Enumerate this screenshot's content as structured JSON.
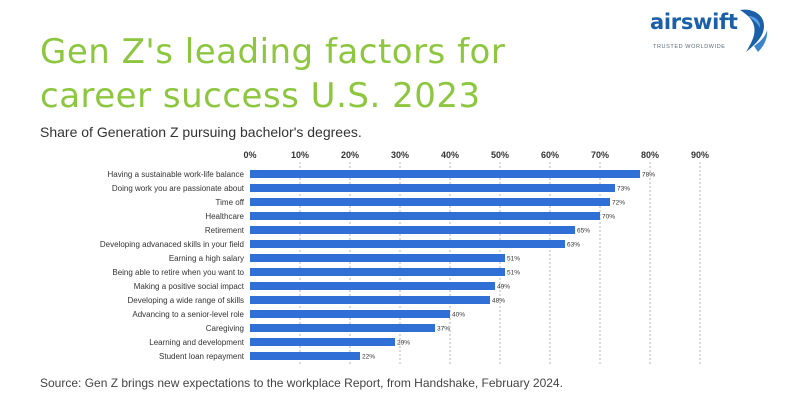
{
  "brand": {
    "name": "airswift",
    "tagline": "TRUSTED WORLDWIDE",
    "logo_color": "#1a5fa8"
  },
  "chart_data": {
    "type": "bar",
    "orientation": "horizontal",
    "title": "Gen Z's leading factors for career success U.S. 2023",
    "subtitle": "Share of Generation Z pursuing bachelor's degrees.",
    "source": "Source: Gen Z brings new expectations to the workplace Report, from Handshake, February 2024.",
    "categories": [
      "Having a sustainable work-life balance",
      "Doing work you are passionate about",
      "Time off",
      "Healthcare",
      "Retirement",
      "Developing advanaced skills in your field",
      "Earning a high salary",
      "Being able to retire when you want to",
      "Making a positive social impact",
      "Developing a wide range of skills",
      "Advancing to a senior-level role",
      "Caregiving",
      "Learning and development",
      "Student loan repayment"
    ],
    "values": [
      78,
      73,
      72,
      70,
      65,
      63,
      51,
      51,
      49,
      48,
      40,
      37,
      29,
      22
    ],
    "value_suffix": "%",
    "xlim": [
      0,
      90
    ],
    "xticks": [
      0,
      10,
      20,
      30,
      40,
      50,
      60,
      70,
      80,
      90
    ],
    "xtick_labels": [
      "0%",
      "10%",
      "20%",
      "30%",
      "40%",
      "50%",
      "60%",
      "70%",
      "80%",
      "90%"
    ],
    "xaxis_position": "top",
    "grid": true,
    "legend": "none",
    "colors": {
      "bar": "#2f6fd6",
      "grid": "#b5b5b5",
      "title": "#8dc63f",
      "label": "#333333"
    }
  }
}
